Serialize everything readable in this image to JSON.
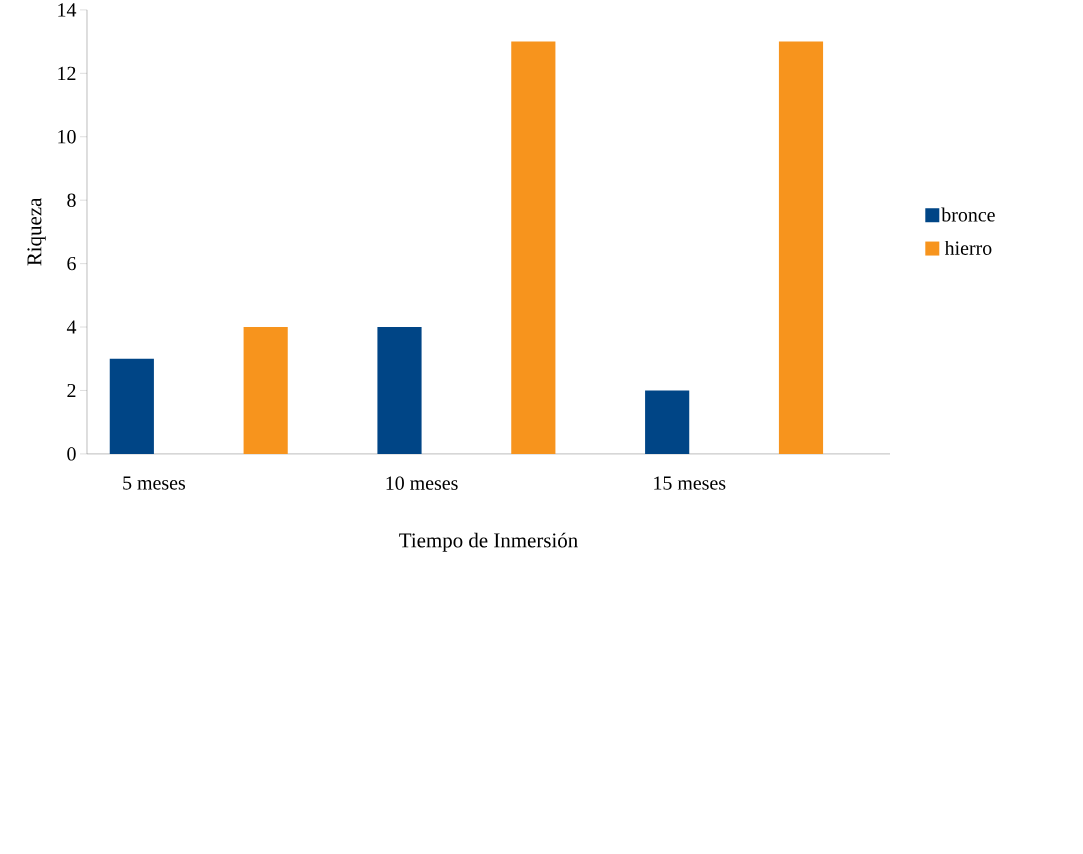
{
  "chart_data": {
    "type": "bar",
    "xlabel": "Tiempo de Inmersión",
    "ylabel": "Riqueza",
    "categories": [
      "5 meses",
      null,
      "10 meses",
      null,
      "15 meses",
      null
    ],
    "series": [
      {
        "name": "bronce",
        "color": "#004586",
        "values": [
          3,
          null,
          4,
          null,
          2,
          null
        ]
      },
      {
        "name": "hierro",
        "color": "#f7941d",
        "values": [
          null,
          4,
          null,
          13,
          null,
          13
        ]
      }
    ],
    "ylim": [
      0,
      14
    ],
    "yticks": [
      0,
      2,
      4,
      6,
      8,
      10,
      12,
      14
    ],
    "legend": "right"
  }
}
